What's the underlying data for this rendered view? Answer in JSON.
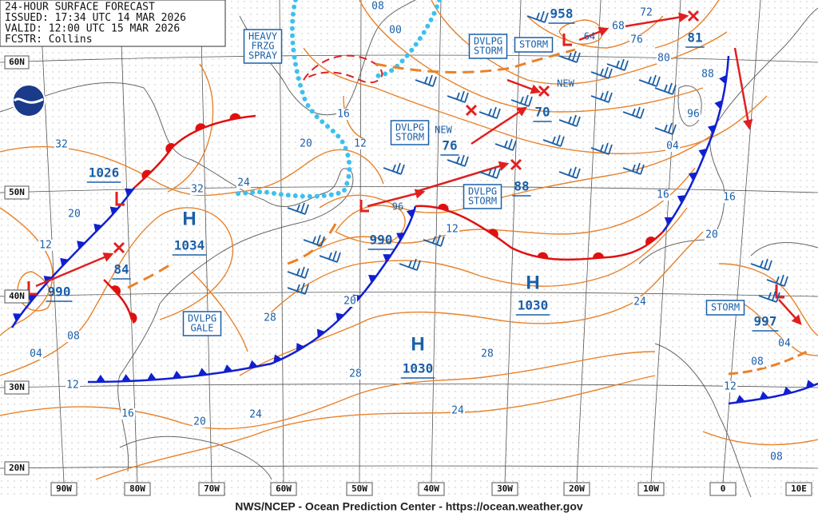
{
  "header": {
    "lines": [
      "24-HOUR SURFACE FORECAST",
      "ISSUED: 17:34 UTC 14 MAR 2026",
      "VALID: 12:00 UTC 15 MAR 2026",
      "FCSTR: Collins"
    ]
  },
  "footer": "NWS/NCEP - Ocean Prediction Center - https://ocean.weather.gov",
  "lat_labels": [
    "60N",
    "50N",
    "40N",
    "30N",
    "20N"
  ],
  "lon_labels": [
    "90W",
    "80W",
    "70W",
    "60W",
    "50W",
    "40W",
    "30W",
    "20W",
    "10W",
    "0",
    "10E"
  ],
  "highs": [
    "H",
    "H",
    "H"
  ],
  "center_pressures": [
    "1026",
    "1034",
    "990",
    "84",
    "990",
    "96",
    "76",
    "70",
    "88",
    "958",
    "64",
    "81",
    "1030",
    "1030",
    "997"
  ],
  "warnings": [
    {
      "lines": [
        "HEAVY",
        "FRZG",
        "SPRAY"
      ]
    },
    {
      "lines": [
        "DVLPG",
        "STORM"
      ]
    },
    {
      "lines": [
        "STORM"
      ]
    },
    {
      "lines": [
        "DVLPG",
        "STORM"
      ]
    },
    {
      "lines": [
        "DVLPG",
        "STORM"
      ]
    },
    {
      "lines": [
        "DVLPG",
        "GALE"
      ]
    },
    {
      "lines": [
        "STORM"
      ]
    }
  ],
  "new_labels": [
    "NEW",
    "NEW"
  ],
  "isobar_labels": [
    "08",
    "00",
    "16",
    "20",
    "12",
    "24",
    "32",
    "32",
    "20",
    "12",
    "08",
    "04",
    "12",
    "16",
    "20",
    "24",
    "28",
    "20",
    "28",
    "28",
    "24",
    "24",
    "12",
    "20",
    "16",
    "16",
    "04",
    "96",
    "88",
    "80",
    "76",
    "72",
    "68",
    "08",
    "04",
    "12",
    "08"
  ]
}
